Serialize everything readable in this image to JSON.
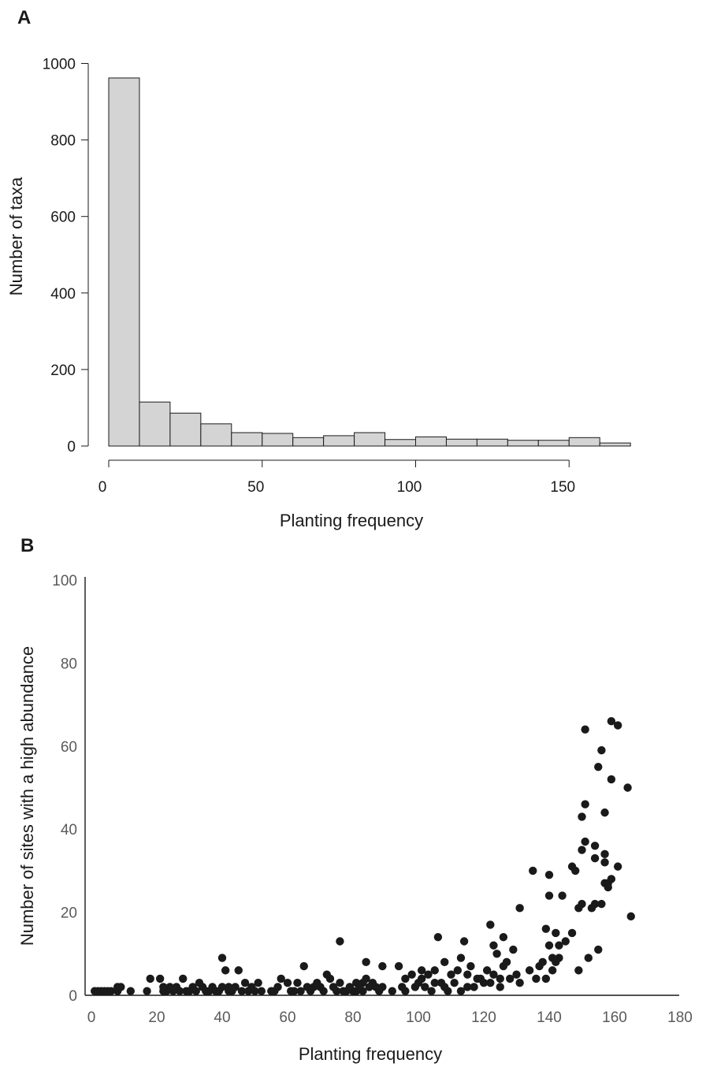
{
  "chart_data": [
    {
      "panel": "A",
      "type": "bar",
      "xlabel": "Planting frequency",
      "ylabel": "Number of taxa",
      "xlim": [
        0,
        170
      ],
      "ylim": [
        0,
        1000
      ],
      "xticks": [
        "0",
        "50",
        "100",
        "150"
      ],
      "yticks": [
        "0",
        "200",
        "400",
        "600",
        "800",
        "1000"
      ],
      "bin_width": 10,
      "bin_starts": [
        0,
        10,
        20,
        30,
        40,
        50,
        60,
        70,
        80,
        90,
        100,
        110,
        120,
        130,
        140,
        150,
        160
      ],
      "values": [
        962,
        115,
        86,
        58,
        35,
        33,
        22,
        27,
        35,
        17,
        24,
        18,
        18,
        15,
        15,
        22,
        8
      ],
      "colors": {
        "fill": "#d4d4d4",
        "stroke": "#1a1a1a"
      }
    },
    {
      "panel": "B",
      "type": "scatter",
      "xlabel": "Planting frequency",
      "ylabel": "Number of sites with a high abundance",
      "xlim": [
        0,
        180
      ],
      "ylim": [
        0,
        100
      ],
      "xticks": [
        "0",
        "20",
        "40",
        "60",
        "80",
        "100",
        "120",
        "140",
        "160",
        "180"
      ],
      "yticks": [
        "0",
        "20",
        "40",
        "60",
        "80",
        "100"
      ],
      "colors": {
        "point": "#1a1a1a"
      },
      "points": [
        [
          1,
          1
        ],
        [
          2,
          1
        ],
        [
          3,
          1
        ],
        [
          4,
          1
        ],
        [
          5,
          1
        ],
        [
          6,
          1
        ],
        [
          8,
          1
        ],
        [
          8,
          2
        ],
        [
          9,
          2
        ],
        [
          12,
          1
        ],
        [
          17,
          1
        ],
        [
          18,
          4
        ],
        [
          21,
          4
        ],
        [
          22,
          2
        ],
        [
          22,
          1
        ],
        [
          23,
          1
        ],
        [
          24,
          2
        ],
        [
          25,
          1
        ],
        [
          26,
          2
        ],
        [
          27,
          1
        ],
        [
          28,
          4
        ],
        [
          29,
          1
        ],
        [
          30,
          1
        ],
        [
          31,
          2
        ],
        [
          32,
          1
        ],
        [
          33,
          3
        ],
        [
          34,
          2
        ],
        [
          35,
          1
        ],
        [
          36,
          1
        ],
        [
          37,
          2
        ],
        [
          38,
          1
        ],
        [
          39,
          1
        ],
        [
          40,
          2
        ],
        [
          40,
          9
        ],
        [
          41,
          6
        ],
        [
          42,
          2
        ],
        [
          42,
          1
        ],
        [
          43,
          1
        ],
        [
          44,
          2
        ],
        [
          45,
          6
        ],
        [
          46,
          1
        ],
        [
          47,
          3
        ],
        [
          48,
          1
        ],
        [
          49,
          2
        ],
        [
          50,
          1
        ],
        [
          51,
          3
        ],
        [
          52,
          1
        ],
        [
          55,
          1
        ],
        [
          56,
          1
        ],
        [
          57,
          2
        ],
        [
          58,
          4
        ],
        [
          60,
          3
        ],
        [
          61,
          1
        ],
        [
          62,
          1
        ],
        [
          63,
          3
        ],
        [
          64,
          1
        ],
        [
          65,
          7
        ],
        [
          66,
          2
        ],
        [
          67,
          1
        ],
        [
          68,
          2
        ],
        [
          69,
          3
        ],
        [
          70,
          2
        ],
        [
          71,
          1
        ],
        [
          72,
          5
        ],
        [
          73,
          4
        ],
        [
          74,
          2
        ],
        [
          75,
          1
        ],
        [
          76,
          13
        ],
        [
          76,
          3
        ],
        [
          77,
          1
        ],
        [
          78,
          1
        ],
        [
          79,
          2
        ],
        [
          80,
          1
        ],
        [
          81,
          3
        ],
        [
          81,
          1
        ],
        [
          82,
          2
        ],
        [
          83,
          3
        ],
        [
          83,
          1
        ],
        [
          84,
          8
        ],
        [
          84,
          4
        ],
        [
          85,
          2
        ],
        [
          86,
          3
        ],
        [
          87,
          2
        ],
        [
          88,
          1
        ],
        [
          89,
          7
        ],
        [
          89,
          2
        ],
        [
          92,
          1
        ],
        [
          94,
          7
        ],
        [
          95,
          2
        ],
        [
          96,
          1
        ],
        [
          96,
          4
        ],
        [
          98,
          5
        ],
        [
          99,
          2
        ],
        [
          100,
          3
        ],
        [
          101,
          6
        ],
        [
          101,
          4
        ],
        [
          102,
          2
        ],
        [
          103,
          5
        ],
        [
          104,
          1
        ],
        [
          105,
          3
        ],
        [
          105,
          6
        ],
        [
          106,
          14
        ],
        [
          107,
          3
        ],
        [
          108,
          2
        ],
        [
          108,
          8
        ],
        [
          109,
          1
        ],
        [
          110,
          5
        ],
        [
          111,
          3
        ],
        [
          112,
          6
        ],
        [
          113,
          1
        ],
        [
          113,
          9
        ],
        [
          114,
          13
        ],
        [
          115,
          2
        ],
        [
          115,
          5
        ],
        [
          116,
          7
        ],
        [
          117,
          2
        ],
        [
          118,
          4
        ],
        [
          119,
          4
        ],
        [
          120,
          3
        ],
        [
          121,
          6
        ],
        [
          122,
          17
        ],
        [
          122,
          3
        ],
        [
          123,
          12
        ],
        [
          123,
          5
        ],
        [
          124,
          10
        ],
        [
          125,
          4
        ],
        [
          125,
          2
        ],
        [
          126,
          14
        ],
        [
          126,
          7
        ],
        [
          127,
          8
        ],
        [
          128,
          4
        ],
        [
          129,
          11
        ],
        [
          130,
          5
        ],
        [
          131,
          3
        ],
        [
          131,
          21
        ],
        [
          134,
          6
        ],
        [
          135,
          30
        ],
        [
          136,
          4
        ],
        [
          137,
          7
        ],
        [
          138,
          8
        ],
        [
          139,
          4
        ],
        [
          139,
          16
        ],
        [
          140,
          29
        ],
        [
          140,
          24
        ],
        [
          140,
          12
        ],
        [
          141,
          9
        ],
        [
          141,
          6
        ],
        [
          142,
          15
        ],
        [
          142,
          8
        ],
        [
          143,
          12
        ],
        [
          143,
          9
        ],
        [
          144,
          24
        ],
        [
          145,
          13
        ],
        [
          147,
          15
        ],
        [
          147,
          31
        ],
        [
          148,
          30
        ],
        [
          149,
          21
        ],
        [
          149,
          6
        ],
        [
          150,
          35
        ],
        [
          150,
          43
        ],
        [
          150,
          22
        ],
        [
          151,
          46
        ],
        [
          151,
          37
        ],
        [
          151,
          64
        ],
        [
          152,
          9
        ],
        [
          153,
          21
        ],
        [
          154,
          36
        ],
        [
          154,
          33
        ],
        [
          154,
          22
        ],
        [
          155,
          55
        ],
        [
          155,
          11
        ],
        [
          156,
          22
        ],
        [
          156,
          59
        ],
        [
          157,
          44
        ],
        [
          157,
          34
        ],
        [
          157,
          32
        ],
        [
          157,
          27
        ],
        [
          158,
          26
        ],
        [
          158,
          27
        ],
        [
          159,
          28
        ],
        [
          159,
          52
        ],
        [
          159,
          66
        ],
        [
          161,
          31
        ],
        [
          161,
          65
        ],
        [
          164,
          50
        ],
        [
          165,
          19
        ]
      ]
    }
  ],
  "panel_labels": {
    "a": "A",
    "b": "B"
  }
}
